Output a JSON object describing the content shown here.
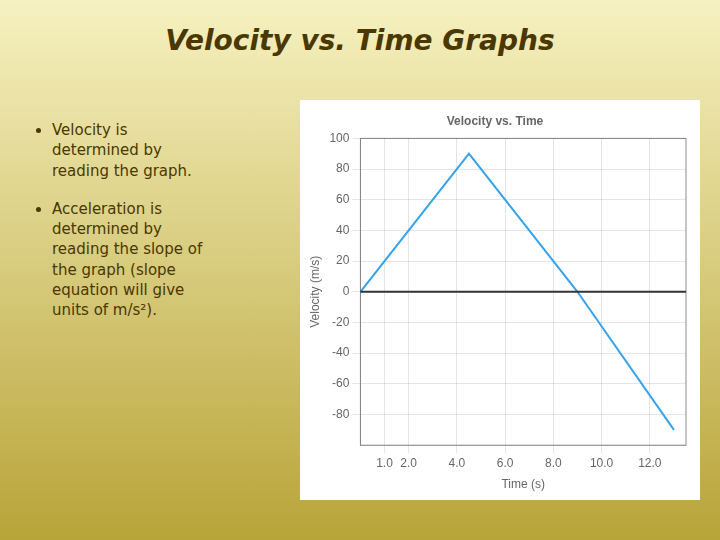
{
  "title": "Velocity vs. Time Graphs",
  "annotations": [
    "Velocity is\ndetermined by\nreading the graph.",
    "Acceleration is\ndetermined by\nreading the slope of\nthe graph (slope\nequation will give\nunits of m/s²)."
  ],
  "chart_data": {
    "type": "line",
    "title": "Velocity vs. Time",
    "x_label": "Time (s)",
    "y_label": "Velocity (m/s)",
    "x": [
      0,
      4.5,
      9.0,
      13.0
    ],
    "values": [
      0,
      90,
      0,
      -90
    ],
    "xlim": [
      0,
      13.5
    ],
    "ylim": [
      -100,
      100
    ],
    "xticks": [
      {
        "value": 1.0,
        "label": "1.0"
      },
      {
        "value": 2.0,
        "label": "2.0"
      },
      {
        "value": 4.0,
        "label": "4.0"
      },
      {
        "value": 6.0,
        "label": "6.0"
      },
      {
        "value": 8.0,
        "label": "8.0"
      },
      {
        "value": 10.0,
        "label": "10.0"
      },
      {
        "value": 12.0,
        "label": "12.0"
      }
    ],
    "yticks": [
      -80,
      -60,
      -40,
      -20,
      0,
      20,
      40,
      60,
      80,
      100
    ],
    "annotations": [
      {
        "y": 0
      }
    ],
    "grid": true
  }
}
